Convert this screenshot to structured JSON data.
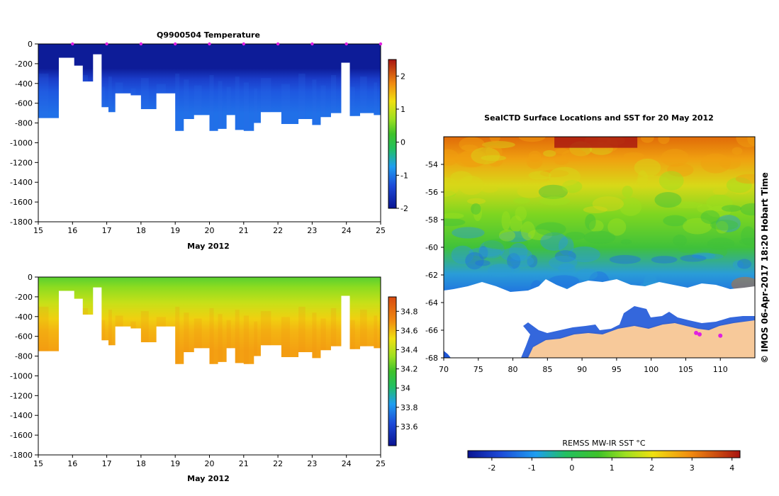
{
  "chart_data": [
    {
      "type": "heatmap",
      "title": "Q9900504  Temperature",
      "xlabel": "May 2012",
      "ylabel": "",
      "xlim": [
        15,
        25
      ],
      "ylim": [
        -1800,
        0
      ],
      "x_ticks": [
        "15",
        "16",
        "17",
        "18",
        "19",
        "20",
        "21",
        "22",
        "23",
        "24",
        "25"
      ],
      "y_ticks": [
        "0",
        "-200",
        "-400",
        "-600",
        "-800",
        "-1000",
        "-1200",
        "-1400",
        "-1600",
        "-1800"
      ],
      "colorbar": {
        "min": -2,
        "max": 2.5,
        "ticks": [
          "-2",
          "-1",
          "0",
          "1",
          "2"
        ]
      },
      "profile_markers_x": [
        16,
        17,
        18,
        19,
        20,
        21,
        22,
        23,
        24,
        25
      ],
      "profile_max_depth": [
        [
          15.0,
          -750
        ],
        [
          15.6,
          -140
        ],
        [
          16.05,
          -220
        ],
        [
          16.3,
          -380
        ],
        [
          16.6,
          -105
        ],
        [
          16.85,
          -640
        ],
        [
          17.05,
          -690
        ],
        [
          17.25,
          -500
        ],
        [
          17.7,
          -520
        ],
        [
          18.0,
          -660
        ],
        [
          18.45,
          -500
        ],
        [
          19.0,
          -880
        ],
        [
          19.25,
          -760
        ],
        [
          19.55,
          -720
        ],
        [
          20.0,
          -880
        ],
        [
          20.25,
          -860
        ],
        [
          20.5,
          -720
        ],
        [
          20.75,
          -870
        ],
        [
          21.0,
          -880
        ],
        [
          21.3,
          -800
        ],
        [
          21.5,
          -690
        ],
        [
          22.1,
          -810
        ],
        [
          22.6,
          -760
        ],
        [
          23.0,
          -820
        ],
        [
          23.25,
          -740
        ],
        [
          23.55,
          -700
        ],
        [
          23.85,
          -190
        ],
        [
          24.1,
          -730
        ],
        [
          24.4,
          -700
        ],
        [
          24.8,
          -720
        ]
      ]
    },
    {
      "type": "heatmap",
      "title": "",
      "xlabel": "May 2012",
      "ylabel": "",
      "xlim": [
        15,
        25
      ],
      "ylim": [
        -1800,
        0
      ],
      "x_ticks": [
        "15",
        "16",
        "17",
        "18",
        "19",
        "20",
        "21",
        "22",
        "23",
        "24",
        "25"
      ],
      "y_ticks": [
        "0",
        "-200",
        "-400",
        "-600",
        "-800",
        "-1000",
        "-1200",
        "-1400",
        "-1600",
        "-1800"
      ],
      "colorbar": {
        "min": 33.4,
        "max": 34.95,
        "ticks": [
          "33.6",
          "33.8",
          "34",
          "34.2",
          "34.4",
          "34.6",
          "34.8"
        ]
      }
    },
    {
      "type": "heatmap",
      "title": "SealCTD Surface Locations and SST for 20 May 2012",
      "xlabel": "",
      "ylabel": "",
      "xlim": [
        70,
        115
      ],
      "ylim": [
        -68,
        -52
      ],
      "x_ticks": [
        "70",
        "75",
        "80",
        "85",
        "90",
        "95",
        "100",
        "105",
        "110"
      ],
      "y_ticks": [
        "-54",
        "-56",
        "-58",
        "-60",
        "-62",
        "-64",
        "-66",
        "-68"
      ],
      "colorbar": {
        "label": "REMSS MW-IR SST °C",
        "min": -2.6,
        "max": 4.2,
        "ticks": [
          "-2",
          "-1",
          "0",
          "1",
          "2",
          "3",
          "4"
        ]
      },
      "seal_locations": [
        [
          106.5,
          -66.2
        ],
        [
          107.0,
          -66.3
        ],
        [
          110.0,
          -66.4
        ]
      ]
    }
  ],
  "footer": {
    "credit": "© IMOS 06-Apr-2017 18:20 Hobart Time"
  },
  "colors": {
    "temp_deep": "#00148c",
    "salt_mid": "#9ae020",
    "land": "#f7c99a",
    "marker": "#e020e0"
  }
}
